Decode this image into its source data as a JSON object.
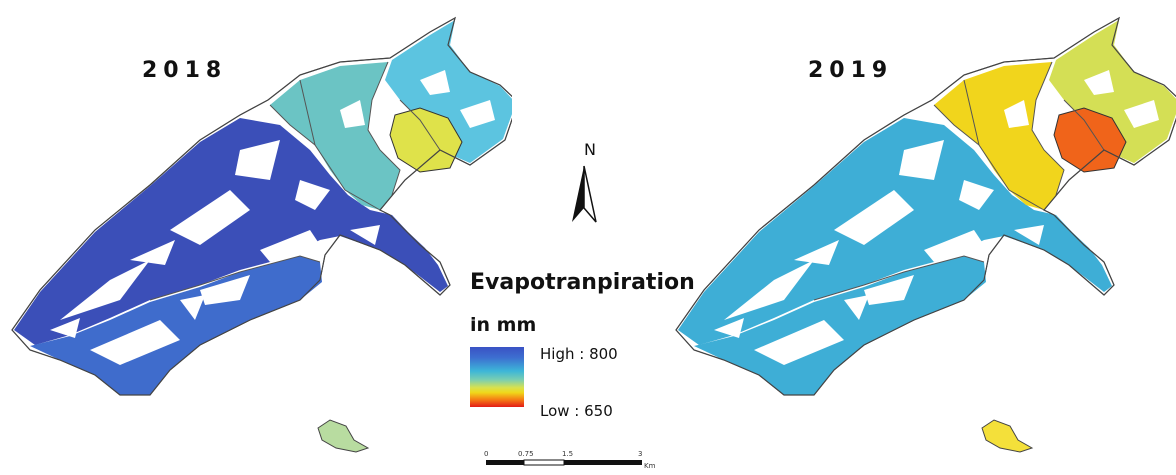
{
  "maps": [
    {
      "year": "2018",
      "colors": {
        "west": "#3b4fb8",
        "southwest": "#3f6ccc",
        "central": "#6bc4c4",
        "northeast": "#5cc4e0",
        "core": "#dfe24a",
        "islet": "#b8dca0"
      }
    },
    {
      "year": "2019",
      "colors": {
        "west": "#3eaed6",
        "southwest": "#3eaed6",
        "central": "#f1d51c",
        "northeast": "#d4df55",
        "core": "#f0641a",
        "islet": "#f4e03a"
      }
    }
  ],
  "north_arrow": {
    "label": "N"
  },
  "legend": {
    "title_line1": "Evapotranpiration",
    "title_line2": "in mm",
    "high": "High : 800",
    "low": "Low : 650",
    "ramp_colors": [
      "#3a52c4",
      "#3db6d8",
      "#d9e24d",
      "#f57a14",
      "#e21b16"
    ]
  },
  "scale_bar": {
    "ticks": [
      "0",
      "0.75",
      "1.5",
      "3"
    ],
    "unit": "Km"
  }
}
